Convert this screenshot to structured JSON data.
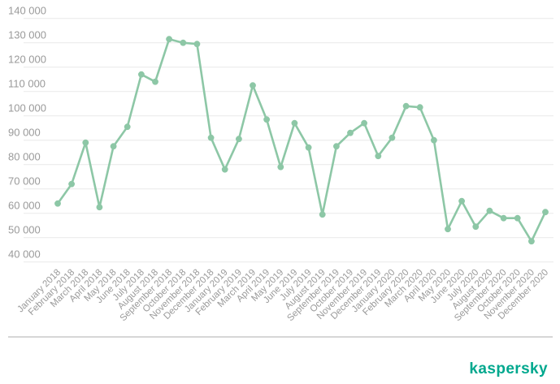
{
  "chart_data": {
    "type": "line",
    "categories": [
      "January 2018",
      "February 2018",
      "March 2018",
      "April 2018",
      "May 2018",
      "June 2018",
      "July 2018",
      "August 2018",
      "September 2018",
      "October 2018",
      "November 2018",
      "December 2018",
      "January 2019",
      "February 2019",
      "March 2019",
      "April 2019",
      "May 2019",
      "June 2019",
      "July 2019",
      "August 2019",
      "September 2019",
      "October 2019",
      "November 2019",
      "December 2019",
      "January 2020",
      "February 2020",
      "March 2020",
      "April 2020",
      "May 2020",
      "June 2020",
      "July 2020",
      "August 2020",
      "September 2020",
      "October 2020",
      "November 2020",
      "December 2020"
    ],
    "values": [
      64000,
      72000,
      89000,
      62500,
      87500,
      95500,
      117000,
      114000,
      131500,
      130000,
      129500,
      91000,
      78000,
      90500,
      112500,
      98500,
      79000,
      97000,
      87000,
      59500,
      87500,
      93000,
      97000,
      83500,
      91000,
      104000,
      103500,
      90000,
      53500,
      65000,
      54500,
      61000,
      58000,
      58000,
      48500,
      60500
    ],
    "y_ticks": [
      "140 000",
      "130 000",
      "120 000",
      "110 000",
      "100 000",
      "90 000",
      "80 000",
      "70 000",
      "60 000",
      "50 000",
      "40 000"
    ],
    "ylim": [
      40000,
      140000
    ],
    "y_step": 10000,
    "grid": true,
    "legend": "none",
    "x_tick_rotation": -45,
    "marker": "circle",
    "line_color": "#8DC7A6"
  },
  "footer": {
    "brand": "kaspersky",
    "brand_color": "#00A88E"
  },
  "colors": {
    "background": "#FFFFFF",
    "axis_label": "#9A9A9A",
    "gridline": "#E9E9E9",
    "divider": "#D6D6D6"
  }
}
